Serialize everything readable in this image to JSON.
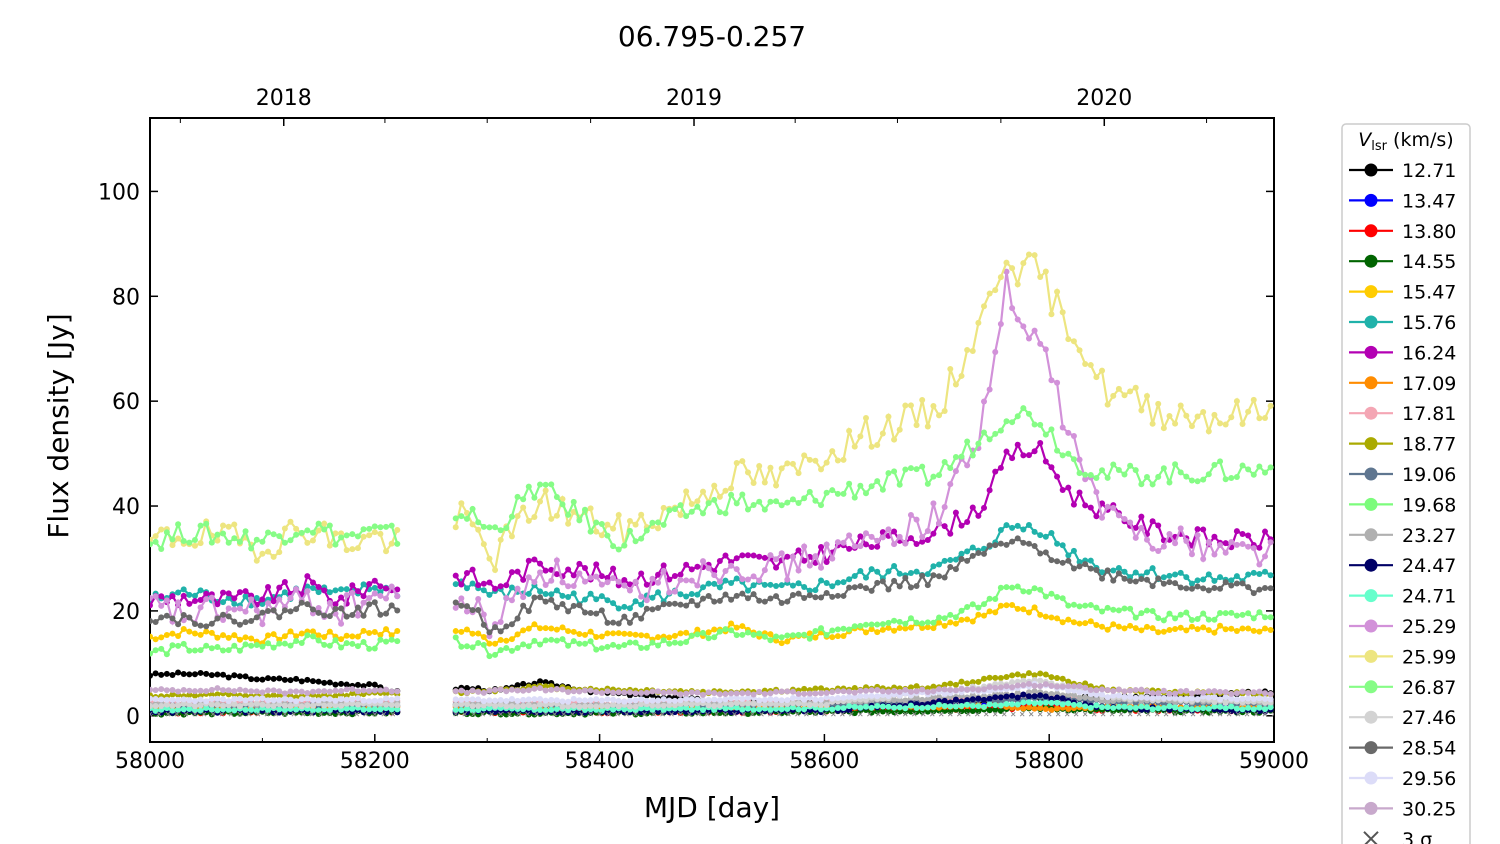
{
  "chart_data": {
    "type": "line",
    "title": "06.795-0.257",
    "xlabel": "MJD [day]",
    "ylabel": "Flux density [Jy]",
    "xlim": [
      58000,
      59000
    ],
    "ylim": [
      -5,
      114
    ],
    "x_ticks": [
      58000,
      58200,
      58400,
      58600,
      58800,
      59000
    ],
    "y_ticks": [
      0,
      20,
      40,
      60,
      80,
      100
    ],
    "top_axis": {
      "ticks": [
        {
          "label": "2018",
          "mjd": 58119
        },
        {
          "label": "2019",
          "mjd": 58484
        },
        {
          "label": "2020",
          "mjd": 58849
        }
      ],
      "minor_mjd": [
        58027,
        58209,
        58300,
        58392,
        58574,
        58665,
        58757,
        58940
      ]
    },
    "legend": {
      "title_italic": "V",
      "title_sub": "lsr",
      "title_rest": " (km/s)",
      "placement": "outside-right",
      "entries": [
        "12.71",
        "13.47",
        "13.80",
        "14.55",
        "15.47",
        "15.76",
        "16.24",
        "17.09",
        "17.81",
        "18.77",
        "19.06",
        "19.68",
        "23.27",
        "24.47",
        "24.71",
        "25.29",
        "25.99",
        "26.87",
        "27.46",
        "28.54",
        "29.56",
        "30.25"
      ],
      "noise_label": "3 σ"
    },
    "grid": false,
    "series": [
      {
        "name": "12.71",
        "color": "#000000",
        "x": [
          58000,
          58030,
          58060,
          58100,
          58130,
          58160,
          58200,
          58220,
          58280,
          58310,
          58345,
          58400,
          58500,
          58600,
          58700,
          58800,
          58900,
          59000
        ],
        "y": [
          7.8,
          8.0,
          7.8,
          7.0,
          6.9,
          6.3,
          5.7,
          4.5,
          5.3,
          4.8,
          6.4,
          4.5,
          2.8,
          2.4,
          2.6,
          3.4,
          3.6,
          4.6
        ]
      },
      {
        "name": "13.47",
        "color": "#0000ff",
        "x": [
          58000,
          58200,
          58400,
          58600,
          58750,
          58790,
          58850,
          59000
        ],
        "y": [
          1.0,
          1.1,
          1.0,
          1.2,
          1.8,
          2.6,
          1.6,
          1.3
        ]
      },
      {
        "name": "13.80",
        "color": "#ff0000",
        "x": [
          58000,
          58200,
          58400,
          58600,
          58760,
          58790,
          58850,
          59000
        ],
        "y": [
          0.7,
          0.8,
          0.7,
          0.9,
          1.4,
          2.0,
          1.2,
          1.0
        ]
      },
      {
        "name": "14.55",
        "color": "#006400",
        "x": [
          58000,
          58200,
          58400,
          58600,
          58760,
          58790,
          58850,
          59000
        ],
        "y": [
          0.5,
          0.6,
          0.5,
          0.7,
          1.2,
          1.5,
          1.0,
          0.8
        ]
      },
      {
        "name": "15.47",
        "color": "#ffcc00",
        "x": [
          58000,
          58030,
          58060,
          58100,
          58140,
          58170,
          58200,
          58240,
          58280,
          58305,
          58345,
          58380,
          58420,
          58480,
          58520,
          58560,
          58600,
          58640,
          58700,
          58740,
          58765,
          58790,
          58820,
          58850,
          58900,
          58950,
          59000
        ],
        "y": [
          15.0,
          16.0,
          15.5,
          14.5,
          16.0,
          15.0,
          16.2,
          15.0,
          16.5,
          14.0,
          17.0,
          16.0,
          15.0,
          15.5,
          17.0,
          14.5,
          15.5,
          16.5,
          17.5,
          19.0,
          21.0,
          20.0,
          18.0,
          17.0,
          16.0,
          16.5,
          16.0
        ]
      },
      {
        "name": "15.76",
        "color": "#20b2aa",
        "x": [
          58000,
          58030,
          58060,
          58100,
          58140,
          58170,
          58200,
          58240,
          58280,
          58305,
          58345,
          58380,
          58420,
          58480,
          58520,
          58560,
          58600,
          58640,
          58700,
          58740,
          58765,
          58790,
          58820,
          58850,
          58900,
          58950,
          59000
        ],
        "y": [
          22.0,
          23.5,
          22.5,
          22.0,
          24.0,
          23.0,
          24.5,
          23.0,
          25.5,
          23.0,
          24.0,
          22.5,
          21.5,
          23.5,
          25.0,
          24.0,
          25.0,
          27.0,
          28.0,
          32.0,
          36.0,
          36.0,
          31.0,
          28.0,
          27.0,
          26.0,
          26.5
        ]
      },
      {
        "name": "16.24",
        "color": "#b300b3",
        "x": [
          58000,
          58030,
          58060,
          58100,
          58140,
          58170,
          58200,
          58240,
          58280,
          58305,
          58345,
          58380,
          58420,
          58480,
          58520,
          58560,
          58600,
          58640,
          58700,
          58740,
          58765,
          58790,
          58820,
          58850,
          58900,
          58950,
          59000
        ],
        "y": [
          22.0,
          22.5,
          22.0,
          22.5,
          25.0,
          22.0,
          25.5,
          23.5,
          27.0,
          24.5,
          29.0,
          28.0,
          26.0,
          28.0,
          30.0,
          29.0,
          31.0,
          33.0,
          35.0,
          40.0,
          50.0,
          51.0,
          42.0,
          39.0,
          35.0,
          33.5,
          33.5
        ]
      },
      {
        "name": "17.09",
        "color": "#ff8c00",
        "x": [
          58000,
          58200,
          58400,
          58600,
          58700,
          58760,
          58790,
          58850,
          59000
        ],
        "y": [
          1.5,
          1.6,
          1.5,
          1.7,
          1.8,
          2.0,
          1.2,
          1.8,
          1.6
        ]
      },
      {
        "name": "17.81",
        "color": "#f4a6b4",
        "x": [
          58000,
          58200,
          58400,
          58600,
          58760,
          58790,
          58850,
          59000
        ],
        "y": [
          2.5,
          2.6,
          2.4,
          2.7,
          3.2,
          3.6,
          3.0,
          2.8
        ]
      },
      {
        "name": "18.77",
        "color": "#aaaa00",
        "x": [
          58000,
          58060,
          58120,
          58200,
          58280,
          58345,
          58400,
          58500,
          58600,
          58700,
          58760,
          58790,
          58820,
          58850,
          58900,
          59000
        ],
        "y": [
          3.8,
          4.0,
          3.6,
          4.2,
          4.5,
          5.5,
          5.0,
          4.5,
          5.0,
          5.5,
          7.5,
          8.0,
          6.5,
          5.0,
          4.5,
          4.2
        ]
      },
      {
        "name": "19.06",
        "color": "#5f7690",
        "x": [
          58000,
          58200,
          58400,
          58600,
          58760,
          58790,
          58850,
          59000
        ],
        "y": [
          1.8,
          2.0,
          1.8,
          2.2,
          3.0,
          3.5,
          2.6,
          2.2
        ]
      },
      {
        "name": "19.68",
        "color": "#7cfc7c",
        "x": [
          58000,
          58030,
          58060,
          58100,
          58140,
          58170,
          58200,
          58240,
          58280,
          58305,
          58345,
          58380,
          58420,
          58480,
          58520,
          58560,
          58600,
          58640,
          58700,
          58740,
          58765,
          58790,
          58820,
          58850,
          58900,
          58950,
          59000
        ],
        "y": [
          12.0,
          13.0,
          12.5,
          13.5,
          14.5,
          13.5,
          13.5,
          14.5,
          14.0,
          12.0,
          14.5,
          13.5,
          13.0,
          14.5,
          16.0,
          14.5,
          16.0,
          18.0,
          18.5,
          21.0,
          25.0,
          24.0,
          21.0,
          20.0,
          19.0,
          19.0,
          19.5
        ]
      },
      {
        "name": "23.27",
        "color": "#b0b0b0",
        "x": [
          58000,
          58200,
          58400,
          58600,
          58760,
          58790,
          58850,
          59000
        ],
        "y": [
          2.2,
          2.3,
          2.1,
          2.5,
          4.0,
          4.5,
          3.0,
          2.6
        ]
      },
      {
        "name": "24.47",
        "color": "#000066",
        "x": [
          58000,
          58200,
          58400,
          58600,
          58760,
          58790,
          58850,
          59000
        ],
        "y": [
          0.8,
          0.9,
          0.8,
          1.0,
          3.5,
          4.0,
          1.5,
          0.9
        ]
      },
      {
        "name": "24.71",
        "color": "#66ffcc",
        "x": [
          58000,
          58200,
          58400,
          58600,
          58760,
          58790,
          58850,
          59000
        ],
        "y": [
          1.2,
          1.3,
          1.2,
          1.5,
          2.0,
          2.5,
          1.6,
          1.4
        ]
      },
      {
        "name": "25.29",
        "color": "#d291d9",
        "x": [
          58000,
          58030,
          58060,
          58100,
          58140,
          58170,
          58200,
          58240,
          58280,
          58305,
          58345,
          58380,
          58420,
          58480,
          58520,
          58560,
          58600,
          58640,
          58700,
          58740,
          58762,
          58775,
          58790,
          58820,
          58850,
          58900,
          58950,
          59000
        ],
        "y": [
          21.0,
          19.0,
          20.0,
          20.0,
          22.0,
          20.0,
          23.0,
          21.0,
          22.0,
          17.0,
          28.0,
          26.0,
          23.0,
          27.0,
          29.0,
          28.0,
          31.0,
          33.0,
          38.0,
          55.0,
          82.0,
          72.0,
          73.0,
          52.0,
          38.0,
          34.0,
          32.0,
          31.5
        ]
      },
      {
        "name": "25.99",
        "color": "#ede580",
        "x": [
          58000,
          58030,
          58060,
          58100,
          58140,
          58170,
          58200,
          58240,
          58280,
          58305,
          58345,
          58380,
          58420,
          58480,
          58520,
          58560,
          58600,
          58640,
          58700,
          58740,
          58762,
          58775,
          58790,
          58800,
          58820,
          58850,
          58900,
          58950,
          59000
        ],
        "y": [
          33.0,
          34.5,
          34.0,
          32.5,
          36.0,
          33.0,
          34.0,
          32.0,
          38.0,
          30.0,
          41.0,
          38.0,
          35.0,
          41.0,
          46.0,
          45.0,
          50.0,
          54.0,
          58.0,
          75.0,
          89.0,
          84.0,
          86.0,
          80.0,
          74.0,
          62.0,
          58.0,
          57.0,
          58.0
        ]
      },
      {
        "name": "26.87",
        "color": "#86fc86",
        "x": [
          58000,
          58030,
          58060,
          58100,
          58140,
          58170,
          58200,
          58240,
          58280,
          58305,
          58345,
          58380,
          58420,
          58480,
          58520,
          58560,
          58600,
          58640,
          58700,
          58740,
          58765,
          58790,
          58820,
          58850,
          58900,
          58950,
          59000
        ],
        "y": [
          33.0,
          35.0,
          34.5,
          33.5,
          36.5,
          34.0,
          35.0,
          33.5,
          39.0,
          35.0,
          44.0,
          38.5,
          33.0,
          39.0,
          41.0,
          39.5,
          42.0,
          44.0,
          46.0,
          53.0,
          58.0,
          57.0,
          49.0,
          46.0,
          46.0,
          46.5,
          47.0
        ]
      },
      {
        "name": "27.46",
        "color": "#d3d3d3",
        "x": [
          58000,
          58200,
          58400,
          58600,
          58760,
          58790,
          58850,
          59000
        ],
        "y": [
          2.0,
          2.1,
          2.0,
          2.3,
          6.0,
          7.0,
          3.5,
          2.5
        ]
      },
      {
        "name": "28.54",
        "color": "#696969",
        "x": [
          58000,
          58030,
          58060,
          58100,
          58140,
          58170,
          58200,
          58240,
          58280,
          58305,
          58345,
          58380,
          58420,
          58480,
          58520,
          58560,
          58600,
          58640,
          58700,
          58740,
          58765,
          58790,
          58820,
          58850,
          58900,
          58950,
          59000
        ],
        "y": [
          19.0,
          18.5,
          18.0,
          19.0,
          21.0,
          19.5,
          20.5,
          19.0,
          22.0,
          16.0,
          22.0,
          20.5,
          18.0,
          21.5,
          23.0,
          22.0,
          23.5,
          24.5,
          26.0,
          31.0,
          33.0,
          32.0,
          29.0,
          27.0,
          25.5,
          24.5,
          24.5
        ]
      },
      {
        "name": "29.56",
        "color": "#dcdcf8",
        "x": [
          58000,
          58200,
          58400,
          58600,
          58760,
          58790,
          58850,
          59000
        ],
        "y": [
          3.0,
          3.1,
          2.9,
          3.3,
          5.0,
          6.0,
          3.8,
          3.2
        ]
      },
      {
        "name": "30.25",
        "color": "#c8a9cc",
        "x": [
          58000,
          58060,
          58120,
          58200,
          58280,
          58345,
          58400,
          58500,
          58600,
          58700,
          58760,
          58790,
          58850,
          58900,
          59000
        ],
        "y": [
          4.8,
          5.0,
          4.5,
          5.0,
          4.5,
          5.0,
          4.6,
          4.2,
          4.5,
          4.8,
          5.5,
          6.0,
          5.0,
          4.5,
          4.3
        ]
      }
    ]
  }
}
